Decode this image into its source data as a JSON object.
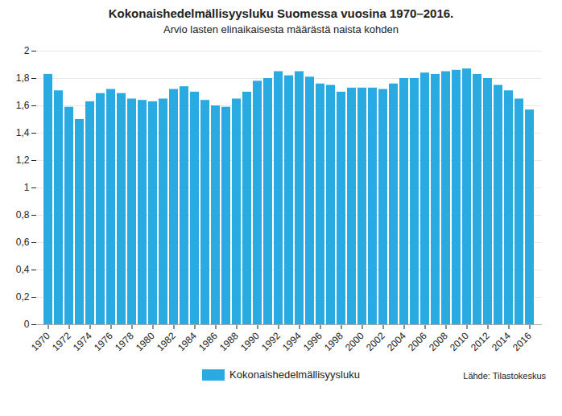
{
  "chart_data": {
    "type": "bar",
    "title": "Kokonaishedelmällisyysluku Suomessa vuosina 1970–2016.",
    "subtitle": "Arvio lasten elinaikaisesta määrästä naista kohden",
    "source": "Lähde: Tilastokeskus",
    "categories": [
      "1970",
      null,
      "1972",
      null,
      "1974",
      null,
      "1976",
      null,
      "1978",
      null,
      "1980",
      null,
      "1982",
      null,
      "1984",
      null,
      "1986",
      null,
      "1988",
      null,
      "1990",
      null,
      "1992",
      null,
      "1994",
      null,
      "1996",
      null,
      "1998",
      null,
      "2000",
      null,
      "2002",
      null,
      "2004",
      null,
      "2006",
      null,
      "2008",
      null,
      "2010",
      null,
      "2012",
      null,
      "2014",
      null,
      "2016"
    ],
    "series": [
      {
        "name": "Kokonaishedelmällisyysluku",
        "color": "#29ABE2",
        "values": [
          1.83,
          1.71,
          1.59,
          1.5,
          1.63,
          1.69,
          1.72,
          1.69,
          1.65,
          1.64,
          1.63,
          1.65,
          1.72,
          1.74,
          1.7,
          1.64,
          1.6,
          1.59,
          1.65,
          1.7,
          1.78,
          1.8,
          1.85,
          1.82,
          1.85,
          1.81,
          1.76,
          1.75,
          1.7,
          1.73,
          1.73,
          1.73,
          1.72,
          1.76,
          1.8,
          1.8,
          1.84,
          1.83,
          1.85,
          1.86,
          1.87,
          1.83,
          1.8,
          1.75,
          1.71,
          1.65,
          1.57
        ]
      }
    ],
    "ylim": [
      0,
      2
    ],
    "yticks": [
      0,
      {
        "value": 0.2,
        "label": "0,2"
      },
      {
        "value": 0.4,
        "label": "0,4"
      },
      {
        "value": 0.6,
        "label": "0,6"
      },
      {
        "value": 0.8,
        "label": "0,8"
      },
      1,
      {
        "value": 1.2,
        "label": "1,2"
      },
      {
        "value": 1.4,
        "label": "1,4"
      },
      {
        "value": 1.6,
        "label": "1,6"
      },
      {
        "value": 1.8,
        "label": "1,8"
      },
      2
    ],
    "grid": true,
    "legend": "bottom"
  }
}
